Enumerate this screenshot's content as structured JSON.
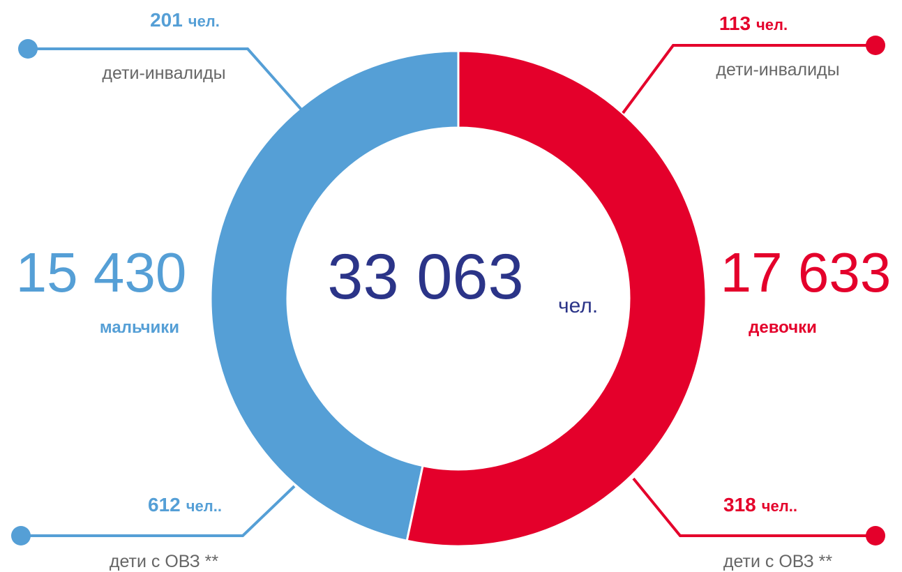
{
  "chart_data": {
    "type": "donut",
    "categories": [
      "мальчики",
      "девочки"
    ],
    "values": [
      15430,
      17633
    ],
    "value_labels": [
      "15 430",
      "17 633"
    ],
    "colors": [
      "#559fd6",
      "#e4002b"
    ],
    "total": {
      "value": 33063,
      "label": "33 063",
      "unit": "чел."
    },
    "callouts": [
      {
        "value": 201,
        "unit": "чел.",
        "label": "дети-инвалиды"
      },
      {
        "value": 113,
        "unit": "чел.",
        "label": "дети-инвалиды"
      },
      {
        "value": 612,
        "unit": "чел..",
        "label": "дети с ОВЗ **"
      },
      {
        "value": 318,
        "unit": "чел..",
        "label": "дети с ОВЗ **"
      }
    ]
  }
}
